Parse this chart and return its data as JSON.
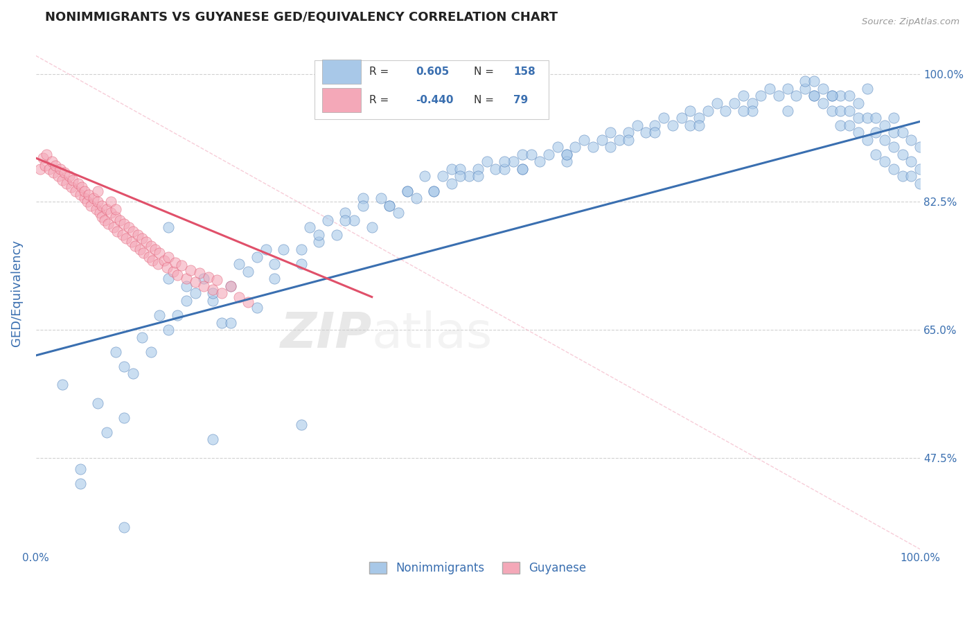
{
  "title": "NONIMMIGRANTS VS GUYANESE GED/EQUIVALENCY CORRELATION CHART",
  "source": "Source: ZipAtlas.com",
  "ylabel": "GED/Equivalency",
  "legend_labels": [
    "Nonimmigrants",
    "Guyanese"
  ],
  "R_blue": 0.605,
  "N_blue": 158,
  "R_pink": -0.44,
  "N_pink": 79,
  "xlim": [
    0,
    1.0
  ],
  "ylim": [
    0.35,
    1.05
  ],
  "yticks": [
    0.475,
    0.65,
    0.825,
    1.0
  ],
  "ytick_labels": [
    "47.5%",
    "65.0%",
    "82.5%",
    "100.0%"
  ],
  "blue_color": "#A8C8E8",
  "pink_color": "#F4A8B8",
  "blue_line_color": "#3A6FB0",
  "pink_line_color": "#E0506A",
  "title_color": "#222222",
  "axis_label_color": "#3A6FB0",
  "watermark_zip": "ZIP",
  "watermark_atlas": "atlas",
  "blue_line_x": [
    0.0,
    1.0
  ],
  "blue_line_y": [
    0.615,
    0.935
  ],
  "pink_line_x": [
    0.0,
    0.38
  ],
  "pink_line_y": [
    0.885,
    0.695
  ],
  "diag_line_x": [
    0.0,
    1.0
  ],
  "diag_line_y": [
    1.025,
    0.35
  ],
  "blue_scatter_x": [
    0.03,
    0.05,
    0.07,
    0.08,
    0.09,
    0.1,
    0.1,
    0.11,
    0.12,
    0.13,
    0.14,
    0.15,
    0.15,
    0.16,
    0.17,
    0.18,
    0.19,
    0.2,
    0.21,
    0.22,
    0.23,
    0.24,
    0.25,
    0.26,
    0.27,
    0.28,
    0.3,
    0.31,
    0.32,
    0.33,
    0.34,
    0.35,
    0.36,
    0.37,
    0.38,
    0.39,
    0.4,
    0.41,
    0.42,
    0.43,
    0.44,
    0.45,
    0.46,
    0.47,
    0.47,
    0.48,
    0.49,
    0.5,
    0.51,
    0.52,
    0.53,
    0.54,
    0.55,
    0.55,
    0.56,
    0.57,
    0.58,
    0.59,
    0.6,
    0.61,
    0.62,
    0.63,
    0.64,
    0.65,
    0.66,
    0.67,
    0.68,
    0.69,
    0.7,
    0.71,
    0.72,
    0.73,
    0.74,
    0.75,
    0.76,
    0.77,
    0.78,
    0.79,
    0.8,
    0.81,
    0.82,
    0.83,
    0.84,
    0.85,
    0.86,
    0.87,
    0.87,
    0.88,
    0.88,
    0.89,
    0.89,
    0.9,
    0.9,
    0.91,
    0.91,
    0.91,
    0.92,
    0.92,
    0.92,
    0.93,
    0.93,
    0.93,
    0.94,
    0.94,
    0.95,
    0.95,
    0.95,
    0.96,
    0.96,
    0.96,
    0.97,
    0.97,
    0.97,
    0.97,
    0.98,
    0.98,
    0.98,
    0.99,
    0.99,
    0.99,
    1.0,
    1.0,
    1.0,
    0.17,
    0.22,
    0.27,
    0.32,
    0.37,
    0.42,
    0.48,
    0.53,
    0.6,
    0.67,
    0.74,
    0.81,
    0.88,
    0.94,
    0.2,
    0.3,
    0.4,
    0.5,
    0.6,
    0.7,
    0.8,
    0.9,
    0.15,
    0.25,
    0.35,
    0.45,
    0.55,
    0.65,
    0.75,
    0.85,
    0.05,
    0.1,
    0.2,
    0.3
  ],
  "blue_scatter_y": [
    0.575,
    0.44,
    0.55,
    0.51,
    0.62,
    0.53,
    0.6,
    0.59,
    0.64,
    0.62,
    0.67,
    0.65,
    0.79,
    0.67,
    0.69,
    0.7,
    0.72,
    0.69,
    0.66,
    0.71,
    0.74,
    0.73,
    0.68,
    0.76,
    0.74,
    0.76,
    0.74,
    0.79,
    0.77,
    0.8,
    0.78,
    0.81,
    0.8,
    0.83,
    0.79,
    0.83,
    0.82,
    0.81,
    0.84,
    0.83,
    0.86,
    0.84,
    0.86,
    0.85,
    0.87,
    0.87,
    0.86,
    0.87,
    0.88,
    0.87,
    0.87,
    0.88,
    0.89,
    0.87,
    0.89,
    0.88,
    0.89,
    0.9,
    0.89,
    0.9,
    0.91,
    0.9,
    0.91,
    0.92,
    0.91,
    0.92,
    0.93,
    0.92,
    0.93,
    0.94,
    0.93,
    0.94,
    0.95,
    0.94,
    0.95,
    0.96,
    0.95,
    0.96,
    0.97,
    0.96,
    0.97,
    0.98,
    0.97,
    0.98,
    0.97,
    0.98,
    0.99,
    0.97,
    0.99,
    0.96,
    0.98,
    0.95,
    0.97,
    0.93,
    0.95,
    0.97,
    0.93,
    0.95,
    0.97,
    0.92,
    0.94,
    0.96,
    0.91,
    0.94,
    0.89,
    0.92,
    0.94,
    0.88,
    0.91,
    0.93,
    0.87,
    0.9,
    0.92,
    0.94,
    0.86,
    0.89,
    0.92,
    0.86,
    0.88,
    0.91,
    0.85,
    0.87,
    0.9,
    0.71,
    0.66,
    0.72,
    0.78,
    0.82,
    0.84,
    0.86,
    0.88,
    0.88,
    0.91,
    0.93,
    0.95,
    0.97,
    0.98,
    0.7,
    0.76,
    0.82,
    0.86,
    0.89,
    0.92,
    0.95,
    0.97,
    0.72,
    0.75,
    0.8,
    0.84,
    0.87,
    0.9,
    0.93,
    0.95,
    0.46,
    0.38,
    0.5,
    0.52
  ],
  "pink_scatter_x": [
    0.005,
    0.008,
    0.01,
    0.012,
    0.015,
    0.018,
    0.02,
    0.022,
    0.025,
    0.028,
    0.03,
    0.032,
    0.035,
    0.038,
    0.04,
    0.042,
    0.045,
    0.048,
    0.05,
    0.052,
    0.055,
    0.055,
    0.058,
    0.06,
    0.062,
    0.065,
    0.068,
    0.07,
    0.07,
    0.072,
    0.075,
    0.075,
    0.078,
    0.08,
    0.082,
    0.085,
    0.085,
    0.088,
    0.09,
    0.09,
    0.092,
    0.095,
    0.098,
    0.1,
    0.102,
    0.105,
    0.108,
    0.11,
    0.112,
    0.115,
    0.118,
    0.12,
    0.122,
    0.125,
    0.128,
    0.13,
    0.132,
    0.135,
    0.138,
    0.14,
    0.145,
    0.148,
    0.15,
    0.155,
    0.158,
    0.16,
    0.165,
    0.17,
    0.175,
    0.18,
    0.185,
    0.19,
    0.195,
    0.2,
    0.205,
    0.21,
    0.22,
    0.23,
    0.24
  ],
  "pink_scatter_y": [
    0.87,
    0.885,
    0.875,
    0.89,
    0.87,
    0.88,
    0.865,
    0.875,
    0.86,
    0.87,
    0.855,
    0.865,
    0.85,
    0.86,
    0.845,
    0.855,
    0.84,
    0.85,
    0.835,
    0.845,
    0.83,
    0.84,
    0.825,
    0.835,
    0.82,
    0.83,
    0.815,
    0.825,
    0.84,
    0.81,
    0.805,
    0.82,
    0.8,
    0.815,
    0.795,
    0.81,
    0.825,
    0.79,
    0.805,
    0.815,
    0.785,
    0.8,
    0.78,
    0.795,
    0.775,
    0.79,
    0.77,
    0.785,
    0.765,
    0.78,
    0.76,
    0.775,
    0.755,
    0.77,
    0.75,
    0.765,
    0.745,
    0.76,
    0.74,
    0.755,
    0.745,
    0.735,
    0.75,
    0.73,
    0.742,
    0.725,
    0.738,
    0.72,
    0.732,
    0.715,
    0.728,
    0.71,
    0.722,
    0.705,
    0.718,
    0.7,
    0.71,
    0.695,
    0.688
  ]
}
